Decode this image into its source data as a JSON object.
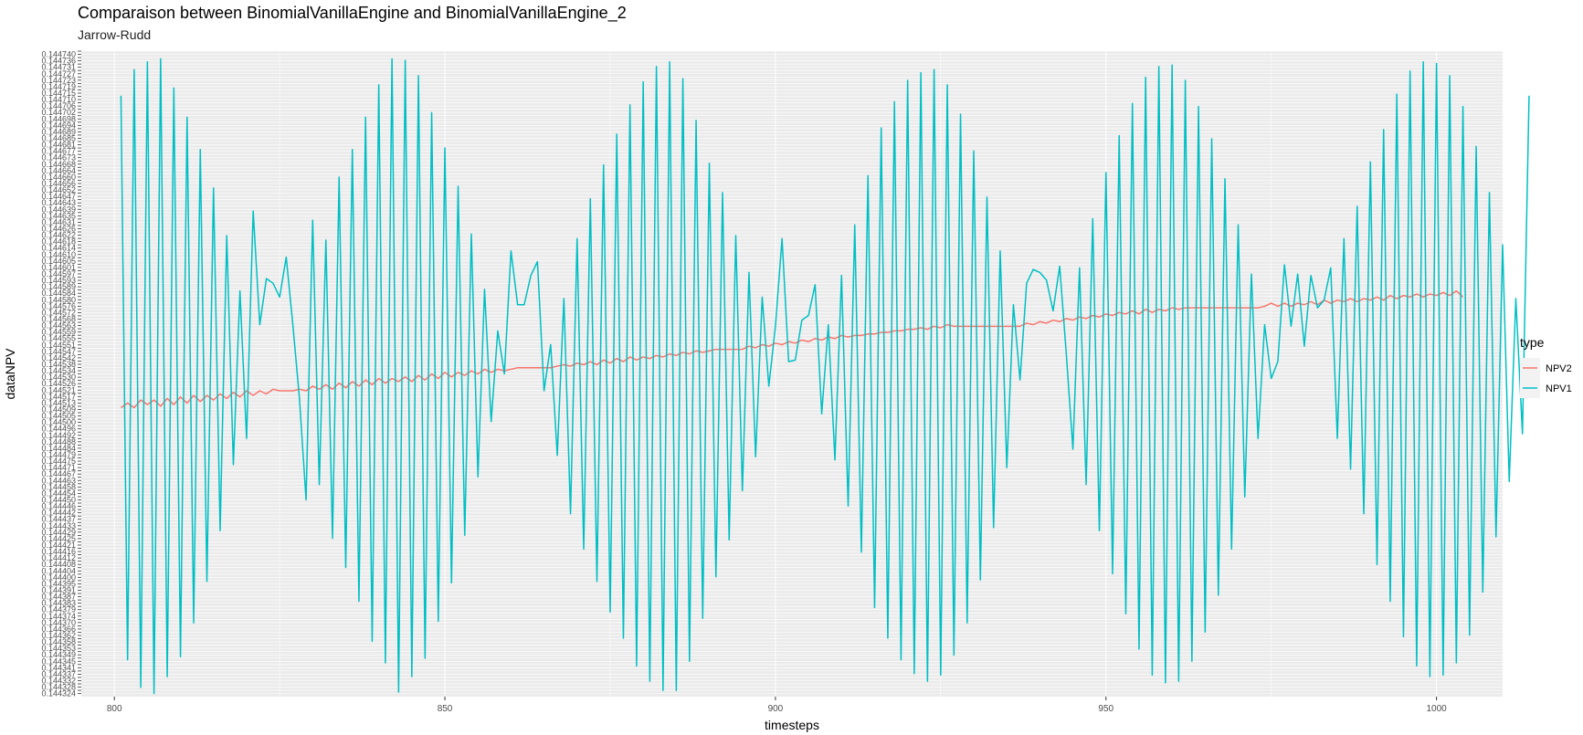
{
  "chart_data": {
    "type": "line",
    "title": "Comparaison between BinomialVanillaEngine and BinomialVanillaEngine_2",
    "subtitle": "Jarrow-Rudd",
    "xlabel": "timesteps",
    "ylabel": "dataNPV",
    "xlim": [
      795,
      1010
    ],
    "x_ticks": [
      800,
      850,
      900,
      950,
      1000
    ],
    "ylim": [
      0.144322,
      0.144742
    ],
    "y_ticks_visible": [
      "0.144742",
      "0.144324"
    ],
    "y_tick_count": 200,
    "grid": true,
    "legend": {
      "title": "type",
      "position": "right",
      "entries": [
        "NPV2",
        "NPV1"
      ]
    },
    "colors": {
      "NPV1": "#00BFC4",
      "NPV2": "#F8766D",
      "panel": "#EBEBEB",
      "grid": "#FFFFFF"
    },
    "series": [
      {
        "name": "NPV2",
        "color": "#F8766D",
        "x_start": 801,
        "x_step": 1,
        "values": [
          0.14451,
          0.144513,
          0.14451,
          0.144515,
          0.144512,
          0.144515,
          0.144511,
          0.144516,
          0.144512,
          0.144517,
          0.144513,
          0.144518,
          0.144514,
          0.144518,
          0.144515,
          0.144519,
          0.144516,
          0.14452,
          0.144517,
          0.144521,
          0.144518,
          0.144521,
          0.144519,
          0.144522,
          0.144521,
          0.144521,
          0.144521,
          0.144522,
          0.144521,
          0.144524,
          0.144522,
          0.144525,
          0.144522,
          0.144526,
          0.144523,
          0.144527,
          0.144524,
          0.144528,
          0.144525,
          0.144529,
          0.144526,
          0.144529,
          0.144527,
          0.14453,
          0.144527,
          0.144531,
          0.144528,
          0.144532,
          0.144529,
          0.144533,
          0.14453,
          0.144533,
          0.144531,
          0.144534,
          0.144532,
          0.144535,
          0.144533,
          0.144535,
          0.144534,
          0.144535,
          0.144536,
          0.144536,
          0.144536,
          0.144536,
          0.144536,
          0.144536,
          0.144537,
          0.144538,
          0.144537,
          0.144539,
          0.144538,
          0.14454,
          0.144538,
          0.144541,
          0.144539,
          0.144542,
          0.14454,
          0.144543,
          0.144541,
          0.144543,
          0.144542,
          0.144544,
          0.144543,
          0.144545,
          0.144544,
          0.144546,
          0.144545,
          0.144547,
          0.144546,
          0.144547,
          0.144548,
          0.144548,
          0.144548,
          0.144548,
          0.144548,
          0.14455,
          0.144549,
          0.144551,
          0.14455,
          0.144552,
          0.144551,
          0.144553,
          0.144552,
          0.144554,
          0.144553,
          0.144555,
          0.144554,
          0.144556,
          0.144555,
          0.144557,
          0.144556,
          0.144557,
          0.144557,
          0.144558,
          0.144558,
          0.144559,
          0.144559,
          0.14456,
          0.14456,
          0.144561,
          0.144561,
          0.144562,
          0.144561,
          0.144563,
          0.144562,
          0.144564,
          0.144563,
          0.144563,
          0.144563,
          0.144563,
          0.144563,
          0.144563,
          0.144563,
          0.144563,
          0.144563,
          0.144563,
          0.144563,
          0.144565,
          0.144564,
          0.144566,
          0.144565,
          0.144567,
          0.144566,
          0.144568,
          0.144567,
          0.144569,
          0.144568,
          0.14457,
          0.144569,
          0.144571,
          0.14457,
          0.144572,
          0.144571,
          0.144573,
          0.144571,
          0.144574,
          0.144572,
          0.144574,
          0.144573,
          0.144575,
          0.144574,
          0.144575,
          0.144575,
          0.144575,
          0.144575,
          0.144575,
          0.144575,
          0.144575,
          0.144575,
          0.144575,
          0.144575,
          0.144575,
          0.144575,
          0.144576,
          0.144578,
          0.144576,
          0.144578,
          0.144576,
          0.144578,
          0.144577,
          0.144579,
          0.144577,
          0.14458,
          0.144578,
          0.14458,
          0.144579,
          0.144581,
          0.144579,
          0.144581,
          0.14458,
          0.144582,
          0.14458,
          0.144583,
          0.144581,
          0.144583,
          0.144582,
          0.144584,
          0.144582,
          0.144584,
          0.144583,
          0.144585,
          0.144583,
          0.144586,
          0.144582
        ]
      },
      {
        "name": "NPV1",
        "color": "#00BFC4",
        "x_start": 801,
        "x_step": 1,
        "values": [
          0.144713,
          0.144346,
          0.14473,
          0.144328,
          0.144735,
          0.144324,
          0.144737,
          0.144335,
          0.144718,
          0.144348,
          0.144699,
          0.14437,
          0.144678,
          0.144397,
          0.144653,
          0.14443,
          0.144622,
          0.144473,
          0.144586,
          0.14449,
          0.144638,
          0.144564,
          0.144594,
          0.144591,
          0.144582,
          0.144608,
          0.144564,
          0.144516,
          0.14445,
          0.144632,
          0.14446,
          0.144619,
          0.144425,
          0.14466,
          0.144406,
          0.144678,
          0.144384,
          0.144699,
          0.144358,
          0.14472,
          0.144344,
          0.144737,
          0.144325,
          0.144736,
          0.144335,
          0.144726,
          0.144347,
          0.144702,
          0.144371,
          0.144679,
          0.144396,
          0.144654,
          0.144427,
          0.144623,
          0.144465,
          0.144587,
          0.144501,
          0.14456,
          0.144532,
          0.144612,
          0.144577,
          0.144577,
          0.144596,
          0.144605,
          0.144521,
          0.144551,
          0.144479,
          0.144581,
          0.144441,
          0.14462,
          0.144418,
          0.144646,
          0.144397,
          0.144668,
          0.144377,
          0.144688,
          0.14436,
          0.144707,
          0.144342,
          0.144722,
          0.144332,
          0.144732,
          0.144326,
          0.144735,
          0.144326,
          0.144724,
          0.144345,
          0.144697,
          0.144373,
          0.144669,
          0.1444,
          0.14465,
          0.144424,
          0.144622,
          0.144456,
          0.144598,
          0.144478,
          0.144582,
          0.144524,
          0.144563,
          0.14462,
          0.14454,
          0.144541,
          0.144567,
          0.14457,
          0.14459,
          0.144506,
          0.144564,
          0.144476,
          0.144596,
          0.144446,
          0.144629,
          0.144416,
          0.144661,
          0.14438,
          0.144692,
          0.14436,
          0.144709,
          0.144346,
          0.144723,
          0.144337,
          0.144728,
          0.144332,
          0.14473,
          0.144336,
          0.14472,
          0.144349,
          0.144701,
          0.14437,
          0.144677,
          0.144398,
          0.144647,
          0.144432,
          0.144612,
          0.144471,
          0.144577,
          0.144528,
          0.144591,
          0.1446,
          0.144598,
          0.144593,
          0.144573,
          0.144602,
          0.144545,
          0.144483,
          0.144601,
          0.14446,
          0.144633,
          0.14443,
          0.144663,
          0.144402,
          0.144687,
          0.144376,
          0.144708,
          0.144353,
          0.144725,
          0.144336,
          0.144732,
          0.144331,
          0.144733,
          0.144332,
          0.144723,
          0.144345,
          0.144706,
          0.144364,
          0.144685,
          0.144388,
          0.144659,
          0.144418,
          0.144629,
          0.144452,
          0.144597,
          0.14449,
          0.144564,
          0.144529,
          0.14454,
          0.144603,
          0.144563,
          0.144597,
          0.14455,
          0.144596,
          0.144575,
          0.14458,
          0.144601,
          0.14449,
          0.14462,
          0.14447,
          0.144641,
          0.144441,
          0.14467,
          0.144408,
          0.144691,
          0.144384,
          0.144714,
          0.144361,
          0.144729,
          0.144342,
          0.144735,
          0.144335,
          0.144734,
          0.144336,
          0.144726,
          0.144344,
          0.144706,
          0.144362,
          0.14468,
          0.14439,
          0.14465,
          0.144426,
          0.144616,
          0.144462,
          0.144581,
          0.144493,
          0.144713
        ]
      }
    ]
  }
}
